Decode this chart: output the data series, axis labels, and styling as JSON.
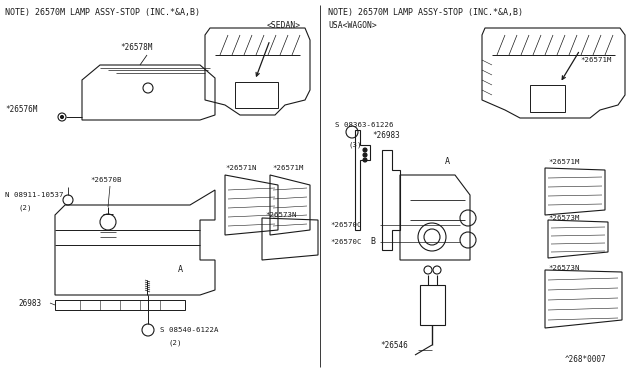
{
  "bg_color": "#ffffff",
  "line_color": "#1a1a1a",
  "text_color": "#1a1a1a",
  "fig_width": 6.4,
  "fig_height": 3.72,
  "dpi": 100,
  "left_note": "NOTE) 26570M LAMP ASSY-STOP (INC.*&A,B)",
  "right_note": "NOTE) 26570M LAMP ASSY-STOP (INC.*&A,B)",
  "sedan_label": "<SEDAN>",
  "wagon_label": "USA<WAGON>",
  "bottom_ref": "^268*0007"
}
